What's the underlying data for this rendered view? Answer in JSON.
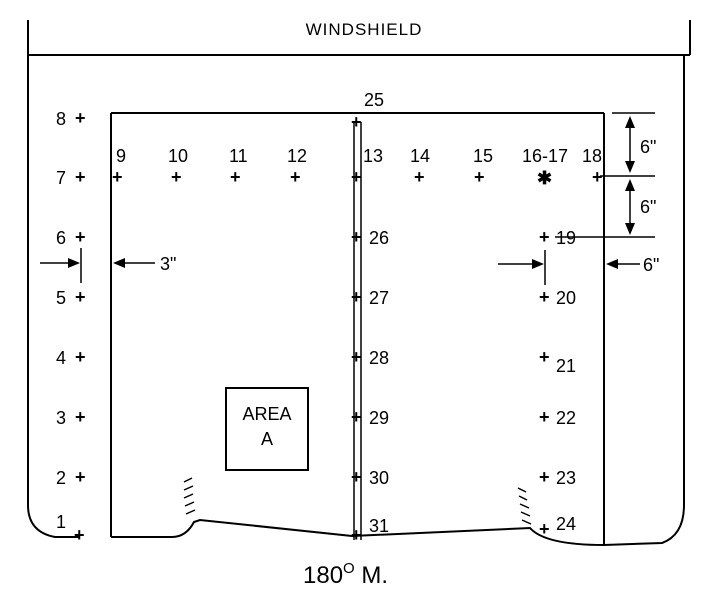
{
  "title": "WINDSHIELD",
  "caption": "180",
  "caption_degree": "O",
  "caption_suffix": " M.",
  "area_label_line1": "AREA",
  "area_label_line2": "A",
  "dimensions": {
    "top_gap": "6\"",
    "row_gap": "6\"",
    "left_offset": "3\"",
    "right_offset": "6\""
  },
  "points": {
    "p1": "1",
    "p2": "2",
    "p3": "3",
    "p4": "4",
    "p5": "5",
    "p6": "6",
    "p7": "7",
    "p8": "8",
    "p9": "9",
    "p10": "10",
    "p11": "11",
    "p12": "12",
    "p13": "13",
    "p14": "14",
    "p15": "15",
    "p16_17": "16-17",
    "p18": "18",
    "p19": "19",
    "p20": "20",
    "p21": "21",
    "p22": "22",
    "p23": "23",
    "p24": "24",
    "p25": "25",
    "p26": "26",
    "p27": "27",
    "p28": "28",
    "p29": "29",
    "p30": "30",
    "p31": "31"
  }
}
